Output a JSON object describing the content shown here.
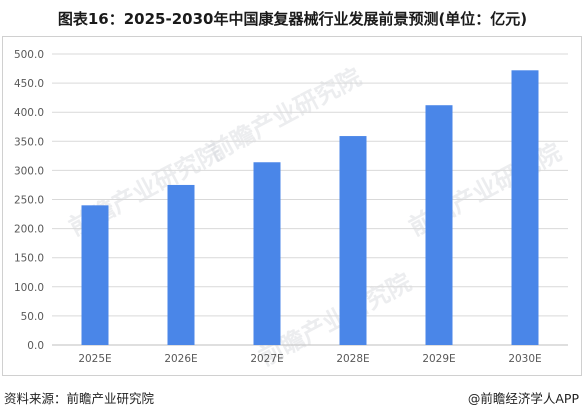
{
  "title": "图表16：2025-2030年中国康复器械行业发展前景预测(单位：亿元)",
  "source": "资料来源：前瞻产业研究院",
  "credit": "@前瞻经济学人APP",
  "watermark": "前瞻产业研究院",
  "colors": {
    "bar": "#4a86e8",
    "grid": "#d9d9d9",
    "axis": "#bfbfbf",
    "tick": "#595959"
  },
  "chart_data": {
    "type": "bar",
    "title": "图表16：2025-2030年中国康复器械行业发展前景预测(单位：亿元)",
    "categories": [
      "2025E",
      "2026E",
      "2027E",
      "2028E",
      "2029E",
      "2030E"
    ],
    "values": [
      240,
      275,
      314,
      359,
      412,
      472
    ],
    "ylim": [
      0,
      500
    ],
    "yticks": [
      "0.0",
      "50.0",
      "100.0",
      "150.0",
      "200.0",
      "250.0",
      "300.0",
      "350.0",
      "400.0",
      "450.0",
      "500.0"
    ],
    "grid": true,
    "legend": "none"
  }
}
